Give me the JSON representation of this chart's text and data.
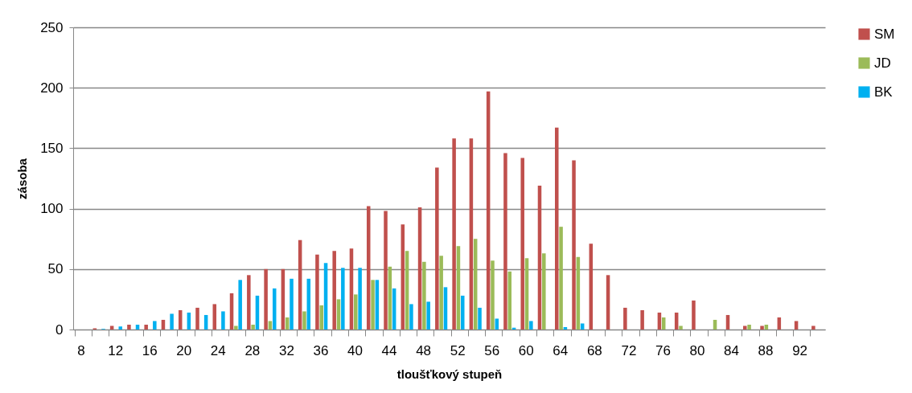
{
  "chart_data": {
    "type": "bar",
    "xlabel": "tloušťkový stupeň",
    "ylabel": "zásoba",
    "categories": [
      "8",
      null,
      "12",
      null,
      "16",
      null,
      "20",
      null,
      "24",
      null,
      "28",
      null,
      "32",
      null,
      "36",
      null,
      "40",
      null,
      "44",
      null,
      "48",
      null,
      "52",
      null,
      "56",
      null,
      "60",
      null,
      "64",
      null,
      "68",
      null,
      "72",
      null,
      "76",
      null,
      "80",
      null,
      "84",
      null,
      "88",
      null,
      "92",
      null
    ],
    "series": [
      {
        "name": "SM",
        "color": "#c0504d",
        "values": [
          null,
          1,
          3,
          4,
          4,
          8,
          16,
          18,
          21,
          30,
          45,
          50,
          50,
          74,
          62,
          65,
          67,
          102,
          98,
          87,
          101,
          134,
          158,
          158,
          197,
          146,
          142,
          119,
          167,
          140,
          71,
          45,
          18,
          16,
          14,
          14,
          24,
          null,
          12,
          3,
          3,
          10,
          7,
          3
        ]
      },
      {
        "name": "JD",
        "color": "#9bbb59",
        "values": [
          null,
          null,
          null,
          null,
          null,
          null,
          null,
          null,
          null,
          3,
          4,
          7,
          10,
          15,
          20,
          25,
          29,
          41,
          52,
          65,
          56,
          61,
          69,
          75,
          57,
          48,
          59,
          63,
          85,
          60,
          null,
          null,
          null,
          null,
          10,
          3,
          null,
          8,
          null,
          4,
          4,
          null,
          null,
          null
        ]
      },
      {
        "name": "BK",
        "color": "#00b0f0",
        "values": [
          null,
          0.5,
          2.5,
          4,
          7,
          13,
          14,
          12,
          15,
          41,
          28,
          34,
          42,
          42,
          55,
          51,
          51,
          41,
          34,
          21,
          23,
          35,
          28,
          18,
          9,
          1.5,
          7,
          null,
          2,
          5,
          null,
          null,
          null,
          null,
          null,
          null,
          null,
          null,
          null,
          null,
          null,
          null,
          null,
          null
        ]
      }
    ],
    "ylim": [
      0,
      250
    ],
    "yticks": [
      0,
      50,
      100,
      150,
      200,
      250
    ],
    "grid": "y",
    "legend": "right"
  }
}
